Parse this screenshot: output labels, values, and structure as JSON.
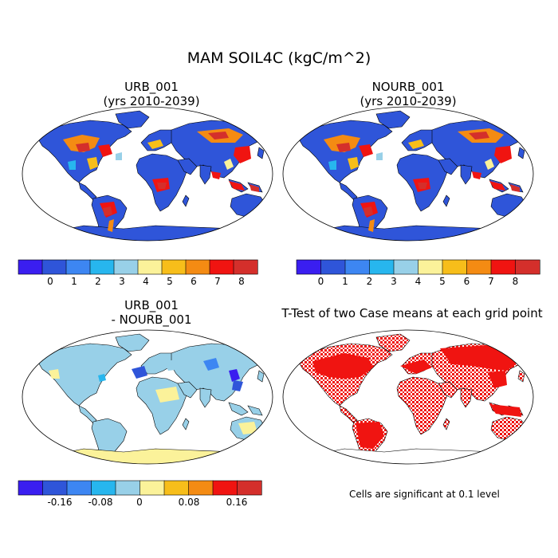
{
  "figure": {
    "title": "MAM SOIL4C (kgC/m^2)"
  },
  "panels": [
    {
      "id": "urb",
      "title_line1": "URB_001",
      "title_line2": "(yrs 2010-2039)"
    },
    {
      "id": "nourb",
      "title_line1": "NOURB_001",
      "title_line2": "(yrs 2010-2039)"
    },
    {
      "id": "diff",
      "title_line1": "URB_001",
      "title_line2": "- NOURB_001"
    },
    {
      "id": "ttest",
      "title_line1": "T-Test of two Case means at each grid point",
      "title_line2": ""
    }
  ],
  "colorbars": {
    "absolute": {
      "colors": [
        "#3a1ef0",
        "#2f55d9",
        "#3d86f2",
        "#27b6ee",
        "#98d0e8",
        "#fbf29a",
        "#f7be1a",
        "#f48b13",
        "#f01411",
        "#d42f2b"
      ],
      "tick_labels": [
        "0",
        "1",
        "2",
        "3",
        "4",
        "5",
        "6",
        "7",
        "8"
      ]
    },
    "difference": {
      "colors": [
        "#3a1ef0",
        "#2f55d9",
        "#3d86f2",
        "#27b6ee",
        "#98d0e8",
        "#fbf29a",
        "#f7be1a",
        "#f48b13",
        "#f01411",
        "#d42f2b"
      ],
      "tick_labels": [
        "-0.16",
        "-0.08",
        "0",
        "0.08",
        "0.16"
      ]
    }
  },
  "significance_note": "Cells are significant at 0.1 level"
}
